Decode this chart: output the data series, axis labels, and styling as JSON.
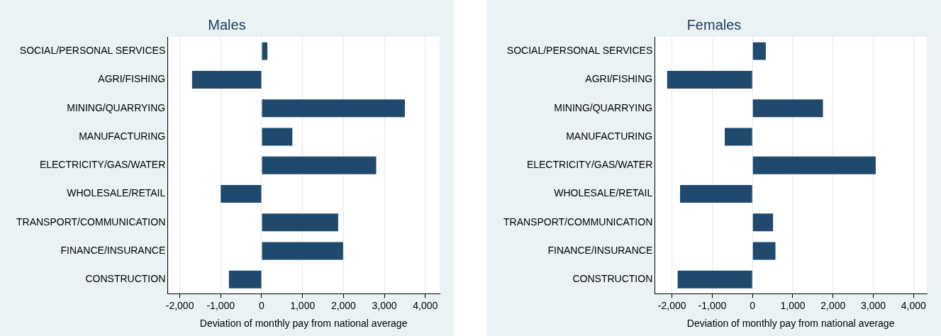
{
  "chart_data": [
    {
      "type": "bar",
      "orientation": "horizontal",
      "title": "Males",
      "xlabel": "Deviation of monthly pay from national average",
      "categories": [
        "SOCIAL/PERSONAL SERVICES",
        "AGRI/FISHING",
        "MINING/QUARRYING",
        "MANUFACTURING",
        "ELECTRICITY/GAS/WATER",
        "WHOLESALE/RETAIL",
        "TRANSPORT/COMMUNICATION",
        "FINANCE/INSURANCE",
        "CONSTRUCTION"
      ],
      "values": [
        140,
        -1700,
        3500,
        750,
        2800,
        -1000,
        1870,
        1990,
        -800
      ],
      "color": "#1f4a6e",
      "xlim": [
        -2300,
        4350
      ],
      "xticks": [
        {
          "value": -2000,
          "label": "-2,000"
        },
        {
          "value": -1000,
          "label": "-1,000"
        },
        0,
        {
          "value": 1000,
          "label": "1,000"
        },
        {
          "value": 2000,
          "label": "2,000"
        },
        {
          "value": 3000,
          "label": "3,000"
        },
        {
          "value": 4000,
          "label": "4,000"
        }
      ],
      "grid": "x",
      "legend": false
    },
    {
      "type": "bar",
      "orientation": "horizontal",
      "title": "Females",
      "xlabel": "Deviation of monthly pay from national average",
      "categories": [
        "SOCIAL/PERSONAL SERVICES",
        "AGRI/FISHING",
        "MINING/QUARRYING",
        "MANUFACTURING",
        "ELECTRICITY/GAS/WATER",
        "WHOLESALE/RETAIL",
        "TRANSPORT/COMMUNICATION",
        "FINANCE/INSURANCE",
        "CONSTRUCTION"
      ],
      "values": [
        330,
        -2120,
        1750,
        -690,
        3060,
        -1800,
        510,
        570,
        -1860
      ],
      "color": "#1f4a6e",
      "xlim": [
        -2430,
        4330
      ],
      "xticks": [
        {
          "value": -2000,
          "label": "-2,000"
        },
        {
          "value": -1000,
          "label": "-1,000"
        },
        0,
        {
          "value": 1000,
          "label": "1,000"
        },
        {
          "value": 2000,
          "label": "2,000"
        },
        {
          "value": 3000,
          "label": "3,000"
        },
        {
          "value": 4000,
          "label": "4,000"
        }
      ],
      "grid": "x",
      "legend": false
    }
  ]
}
